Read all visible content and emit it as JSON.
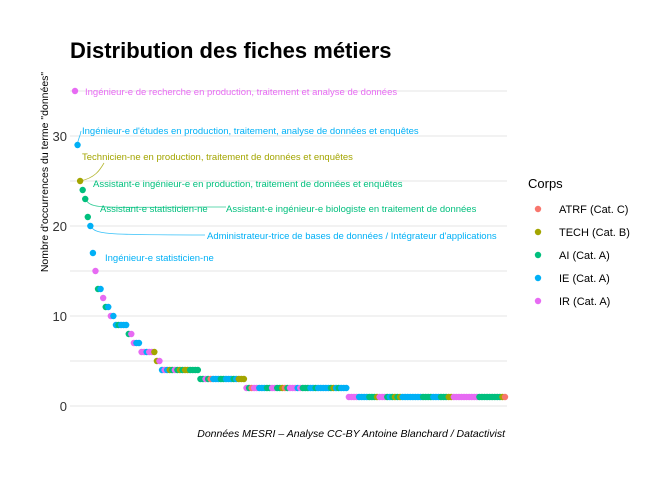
{
  "chart_data": {
    "type": "scatter",
    "title": "Distribution des fiches métiers",
    "xlabel": "",
    "ylabel": "Nombre d'occurrences du terme \"données\"",
    "caption": "Données MESRI – Analyse CC-BY Antoine Blanchard / Datactivist",
    "ylim": [
      -2,
      37
    ],
    "yticks": [
      0,
      10,
      20,
      30
    ],
    "minor_gridlines": [
      5,
      15,
      25,
      35
    ],
    "grid": true,
    "legend": {
      "title": "Corps",
      "placement": "right",
      "entries": [
        {
          "key": "ATRF",
          "label": "ATRF (Cat. C)",
          "color": "#F8766D"
        },
        {
          "key": "TECH",
          "label": "TECH (Cat. B)",
          "color": "#A3A500"
        },
        {
          "key": "AI",
          "label": "AI (Cat. A)",
          "color": "#00BF7D"
        },
        {
          "key": "IE",
          "label": "IE (Cat. A)",
          "color": "#00B0F6"
        },
        {
          "key": "IR",
          "label": "IR (Cat. A)",
          "color": "#E76BF3"
        }
      ]
    },
    "levels": [
      {
        "y": 35,
        "corps": [
          "IR"
        ]
      },
      {
        "y": 29,
        "corps": [
          "IE"
        ]
      },
      {
        "y": 25,
        "corps": [
          "TECH"
        ]
      },
      {
        "y": 24,
        "corps": [
          "AI"
        ]
      },
      {
        "y": 23,
        "corps": [
          "AI"
        ]
      },
      {
        "y": 21,
        "corps": [
          "AI"
        ]
      },
      {
        "y": 20,
        "corps": [
          "IE"
        ]
      },
      {
        "y": 17,
        "corps": [
          "IE"
        ]
      },
      {
        "y": 15,
        "corps": [
          "IR"
        ]
      },
      {
        "y": 13,
        "corps": [
          "AI",
          "IE"
        ]
      },
      {
        "y": 12,
        "corps": [
          "IR"
        ]
      },
      {
        "y": 11,
        "corps": [
          "AI",
          "IE"
        ]
      },
      {
        "y": 10,
        "corps": [
          "IR",
          "IE"
        ]
      },
      {
        "y": 9,
        "corps": [
          "IE",
          "AI",
          "IE",
          "IE",
          "IE"
        ]
      },
      {
        "y": 8,
        "corps": [
          "AI",
          "IR"
        ]
      },
      {
        "y": 7,
        "corps": [
          "IR",
          "IE",
          "IE"
        ]
      },
      {
        "y": 6,
        "corps": [
          "IR",
          "IR",
          "IE",
          "IR",
          "IR",
          "TECH"
        ]
      },
      {
        "y": 5,
        "corps": [
          "TECH",
          "IR"
        ]
      },
      {
        "y": 4,
        "corps": [
          "IE",
          "IR",
          "IE",
          "TECH",
          "AI",
          "IR",
          "AI",
          "TECH",
          "AI",
          "TECH",
          "TECH",
          "AI",
          "AI",
          "AI",
          "AI"
        ]
      },
      {
        "y": 3,
        "corps": [
          "AI",
          "AI",
          "IR",
          "AI",
          "ATRF",
          "IE",
          "IE",
          "IE",
          "AI",
          "AI",
          "IE",
          "IE",
          "IE",
          "AI",
          "IE",
          "TECH",
          "TECH",
          "TECH"
        ]
      },
      {
        "y": 2,
        "corps": [
          "IR",
          "AI",
          "ATRF",
          "IR",
          "IR",
          "IE",
          "IE",
          "IE",
          "AI",
          "AI",
          "IR",
          "IR",
          "AI",
          "AI",
          "TECH",
          "ATRF",
          "AI",
          "IR",
          "IR",
          "IR",
          "IE",
          "IR",
          "AI",
          "AI",
          "AI",
          "IE",
          "IE",
          "AI",
          "IE",
          "IE",
          "IE",
          "IE",
          "IE",
          "AI",
          "TECH",
          "IE",
          "AI",
          "IE",
          "IE",
          "IE"
        ]
      },
      {
        "y": 1,
        "corps": [
          "IR",
          "IR",
          "IR",
          "IR",
          "IE",
          "IE",
          "IE",
          "IE",
          "AI",
          "AI",
          "AI",
          "TECH",
          "IR",
          "IR",
          "IR",
          "AI",
          "IE",
          "AI",
          "TECH",
          "AI",
          "TECH",
          "IE",
          "IE",
          "IE",
          "IE",
          "IE",
          "IE",
          "IE",
          "IE",
          "AI",
          "AI",
          "AI",
          "AI",
          "IE",
          "IE",
          "IE",
          "AI",
          "AI",
          "AI",
          "TECH",
          "TECH",
          "IR",
          "IR",
          "IR",
          "IR",
          "IR",
          "IR",
          "IR",
          "IR",
          "IR",
          "IR",
          "AI",
          "AI",
          "AI",
          "AI",
          "AI",
          "AI",
          "AI",
          "AI",
          "AI",
          "TECH",
          "ATRF"
        ]
      }
    ],
    "annotations": [
      {
        "text": "Ingénieur-e de recherche en production, traitement et analyse de données",
        "corps": "IR",
        "y": 35
      },
      {
        "text": "Ingénieur-e d'études en production, traitement, analyse de données et enquêtes",
        "corps": "IE",
        "y": 29
      },
      {
        "text": "Technicien-ne en production, traitement de données et enquêtes",
        "corps": "TECH",
        "y": 25
      },
      {
        "text": "Assistant-e ingénieur-e en production, traitement de données et enquêtes",
        "corps": "AI",
        "y": 24
      },
      {
        "text": "Assistant-e statisticien-ne",
        "corps": "AI",
        "y": 23
      },
      {
        "text": "Assistant-e ingénieur-e biologiste en traitement de données",
        "corps": "AI",
        "y": 21
      },
      {
        "text": "Administrateur-trice de bases de données / Intégrateur d'applications",
        "corps": "IE",
        "y": 20
      },
      {
        "text": "Ingénieur-e statisticien-ne",
        "corps": "IE",
        "y": 17
      }
    ]
  }
}
